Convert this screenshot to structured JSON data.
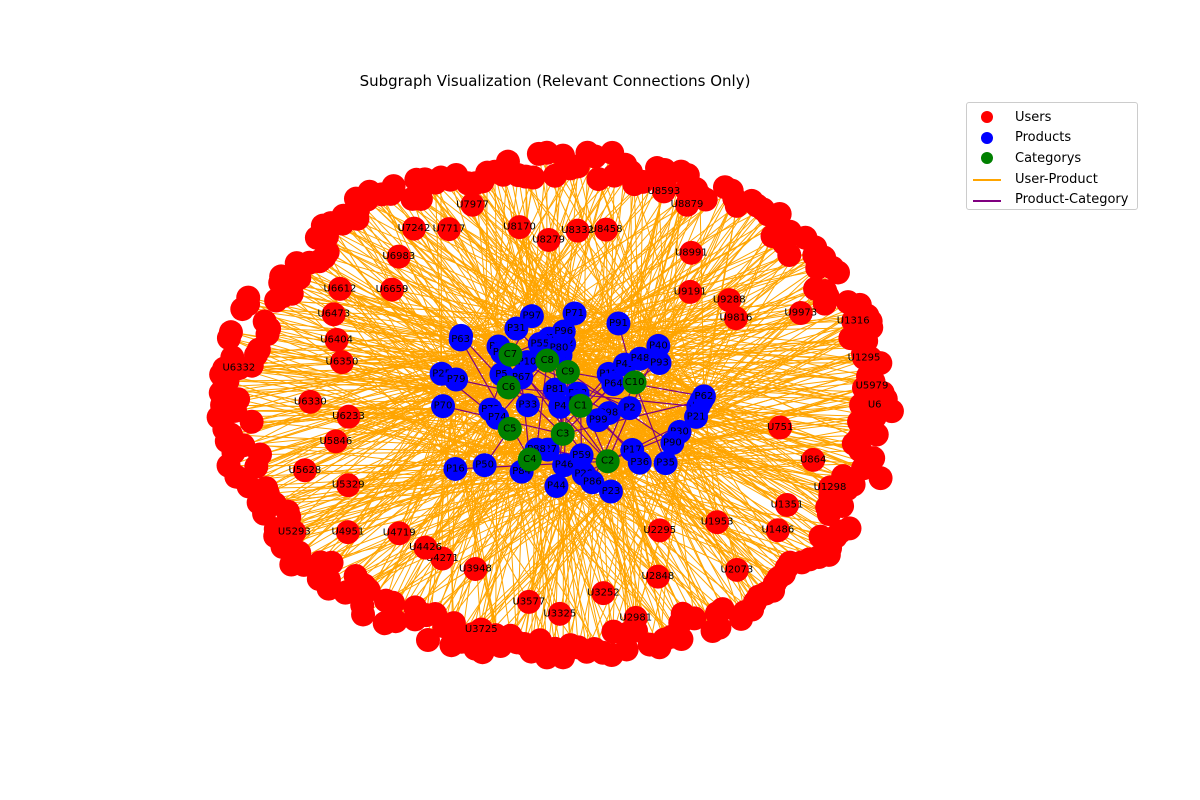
{
  "title": "Subgraph Visualization (Relevant Connections Only)",
  "legend": [
    {
      "label": "Users",
      "kind": "dot",
      "color": "#ff0000"
    },
    {
      "label": "Products",
      "kind": "dot",
      "color": "#0000ff"
    },
    {
      "label": "Categorys",
      "kind": "dot",
      "color": "#008000"
    },
    {
      "label": "User-Product",
      "kind": "line",
      "color": "#ffa500"
    },
    {
      "label": "Product-Category",
      "kind": "line",
      "color": "#800080"
    }
  ],
  "colors": {
    "user": "#ff0000",
    "product": "#0000ff",
    "category": "#008000",
    "user_product_edge": "#ffa500",
    "product_category_edge": "#800080"
  },
  "users": [
    "U6",
    "U751",
    "U864",
    "U1298",
    "U1351",
    "U1486",
    "U1953",
    "U2073",
    "U2295",
    "U2848",
    "U2981",
    "U3252",
    "U3325",
    "U3577",
    "U3725",
    "U3948",
    "U4271",
    "U4426",
    "U4719",
    "U4951",
    "U5293",
    "U5329",
    "U5628",
    "U5846",
    "U6233",
    "U6330",
    "U6332",
    "U6350",
    "U6404",
    "U6473",
    "U6612",
    "U6659",
    "U6983",
    "U7242",
    "U7717",
    "U7977",
    "U8170",
    "U8279",
    "U8332",
    "U8458",
    "U8593",
    "U8879",
    "U8991",
    "U9191",
    "U9288",
    "U9816",
    "U9973",
    "U1316",
    "U1295",
    "U5979"
  ],
  "products": [
    "P1",
    "P2",
    "P4",
    "P5",
    "P7",
    "P10",
    "P12",
    "P16",
    "P17",
    "P18",
    "P20",
    "P21",
    "P23",
    "P25",
    "P27",
    "P28",
    "P30",
    "P31",
    "P33",
    "P35",
    "P36",
    "P38",
    "P40",
    "P41",
    "P42",
    "P44",
    "P45",
    "P46",
    "P48",
    "P50",
    "P53",
    "P55",
    "P59",
    "P62",
    "P63",
    "P64",
    "P67",
    "P70",
    "P71",
    "P72",
    "P74",
    "P77",
    "P79",
    "P80",
    "P81",
    "P84",
    "P86",
    "P88",
    "P89",
    "P90",
    "P91",
    "P93",
    "P94",
    "P96",
    "P97",
    "P98",
    "P99"
  ],
  "categories": [
    "C1",
    "C2",
    "C3",
    "C4",
    "C5",
    "C6",
    "C7",
    "C8",
    "C9",
    "C10"
  ]
}
